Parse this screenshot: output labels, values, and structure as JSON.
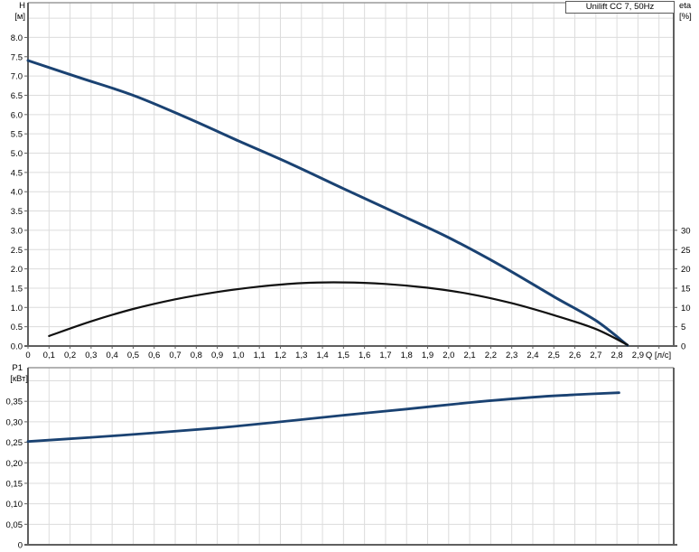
{
  "colors": {
    "curve_blue": "#1a4272",
    "curve_black": "#111111",
    "grid": "#dcdcdc",
    "axis": "#5f5f5f",
    "frame": "#9a9a9a",
    "text": "#000000"
  },
  "chart_data": [
    {
      "type": "line",
      "title": "Unilift CC 7, 50Hz",
      "x_axis": {
        "label": "Q [л/с]",
        "min": 0,
        "max": 3.07,
        "tick_step": 0.1,
        "ticks": [
          {
            "v": 0,
            "t": "0"
          },
          {
            "v": 0.1,
            "t": "0,1"
          },
          {
            "v": 0.2,
            "t": "0,2"
          },
          {
            "v": 0.3,
            "t": "0,3"
          },
          {
            "v": 0.4,
            "t": "0,4"
          },
          {
            "v": 0.5,
            "t": "0,5"
          },
          {
            "v": 0.6,
            "t": "0,6"
          },
          {
            "v": 0.7,
            "t": "0,7"
          },
          {
            "v": 0.8,
            "t": "0,8"
          },
          {
            "v": 0.9,
            "t": "0,9"
          },
          {
            "v": 1.0,
            "t": "1,0"
          },
          {
            "v": 1.1,
            "t": "1,1"
          },
          {
            "v": 1.2,
            "t": "1,2"
          },
          {
            "v": 1.3,
            "t": "1,3"
          },
          {
            "v": 1.4,
            "t": "1,4"
          },
          {
            "v": 1.5,
            "t": "1,5"
          },
          {
            "v": 1.6,
            "t": "1,6"
          },
          {
            "v": 1.7,
            "t": "1,7"
          },
          {
            "v": 1.8,
            "t": "1,8"
          },
          {
            "v": 1.9,
            "t": "1,9"
          },
          {
            "v": 2.0,
            "t": "2,0"
          },
          {
            "v": 2.1,
            "t": "2,1"
          },
          {
            "v": 2.2,
            "t": "2,2"
          },
          {
            "v": 2.3,
            "t": "2,3"
          },
          {
            "v": 2.4,
            "t": "2,4"
          },
          {
            "v": 2.5,
            "t": "2,5"
          },
          {
            "v": 2.6,
            "t": "2,6"
          },
          {
            "v": 2.7,
            "t": "2,7"
          },
          {
            "v": 2.8,
            "t": "2,8"
          },
          {
            "v": 2.9,
            "t": "2,9"
          },
          {
            "v": 3.0,
            "t": ""
          }
        ]
      },
      "y_axis_left": {
        "title": [
          "H",
          "[м]"
        ],
        "min": 0,
        "max": 8.9,
        "ticks": [
          {
            "v": 8.5,
            "t": ""
          },
          {
            "v": 8.0,
            "t": "8.0"
          },
          {
            "v": 7.5,
            "t": "7.5"
          },
          {
            "v": 7.0,
            "t": "7.0"
          },
          {
            "v": 6.5,
            "t": "6.5"
          },
          {
            "v": 6.0,
            "t": "6.0"
          },
          {
            "v": 5.5,
            "t": "5.5"
          },
          {
            "v": 5.0,
            "t": "5.0"
          },
          {
            "v": 4.5,
            "t": "4.5"
          },
          {
            "v": 4.0,
            "t": "4.0"
          },
          {
            "v": 3.5,
            "t": "3.5"
          },
          {
            "v": 3.0,
            "t": "3.0"
          },
          {
            "v": 2.5,
            "t": "2.5"
          },
          {
            "v": 2.0,
            "t": "2.0"
          },
          {
            "v": 1.5,
            "t": "1.5"
          },
          {
            "v": 1.0,
            "t": "1.0"
          },
          {
            "v": 0.5,
            "t": "0.5"
          },
          {
            "v": 0,
            "t": "0.0"
          }
        ]
      },
      "y_axis_right": {
        "title": [
          "eta",
          "[%]"
        ],
        "min": 0,
        "max": 89,
        "ticks": [
          {
            "v": 30,
            "t": "30"
          },
          {
            "v": 25,
            "t": "25"
          },
          {
            "v": 20,
            "t": "20"
          },
          {
            "v": 15,
            "t": "15"
          },
          {
            "v": 10,
            "t": "10"
          },
          {
            "v": 5,
            "t": "5"
          },
          {
            "v": 0,
            "t": "0"
          }
        ]
      },
      "series": [
        {
          "name": "head-curve",
          "color_key": "curve_blue",
          "width": 3,
          "axis": "left",
          "points": [
            [
              0,
              7.4
            ],
            [
              0.25,
              6.95
            ],
            [
              0.5,
              6.5
            ],
            [
              0.75,
              5.93
            ],
            [
              1.0,
              5.32
            ],
            [
              1.25,
              4.72
            ],
            [
              1.5,
              4.08
            ],
            [
              1.75,
              3.45
            ],
            [
              2.0,
              2.81
            ],
            [
              2.25,
              2.08
            ],
            [
              2.5,
              1.28
            ],
            [
              2.7,
              0.66
            ],
            [
              2.85,
              0.02
            ]
          ]
        },
        {
          "name": "efficiency-curve",
          "color_key": "curve_black",
          "width": 2.2,
          "axis": "right",
          "points": [
            [
              0.1,
              2.6
            ],
            [
              0.3,
              6.4
            ],
            [
              0.5,
              9.6
            ],
            [
              0.7,
              12.1
            ],
            [
              0.9,
              14.0
            ],
            [
              1.1,
              15.4
            ],
            [
              1.3,
              16.3
            ],
            [
              1.5,
              16.5
            ],
            [
              1.7,
              16.1
            ],
            [
              1.9,
              15.1
            ],
            [
              2.1,
              13.5
            ],
            [
              2.3,
              11.1
            ],
            [
              2.5,
              8.0
            ],
            [
              2.7,
              4.4
            ],
            [
              2.85,
              0.3
            ]
          ]
        }
      ]
    },
    {
      "type": "line",
      "title": "",
      "x_axis": {
        "label": "",
        "shares_ticks_with_chart": 0,
        "labels_visible": false
      },
      "y_axis_left": {
        "title": [
          "P1",
          "[кВт]"
        ],
        "min": 0,
        "max": 0.432,
        "ticks": [
          {
            "v": 0.4,
            "t": ""
          },
          {
            "v": 0.35,
            "t": "0,35"
          },
          {
            "v": 0.3,
            "t": "0,30"
          },
          {
            "v": 0.25,
            "t": "0,25"
          },
          {
            "v": 0.2,
            "t": "0,20"
          },
          {
            "v": 0.15,
            "t": "0,15"
          },
          {
            "v": 0.1,
            "t": "0,10"
          },
          {
            "v": 0.05,
            "t": "0,05"
          },
          {
            "v": 0,
            "t": "0"
          }
        ]
      },
      "series": [
        {
          "name": "power-curve",
          "color_key": "curve_blue",
          "width": 2.8,
          "axis": "left",
          "points": [
            [
              0,
              0.252
            ],
            [
              0.3,
              0.262
            ],
            [
              0.6,
              0.273
            ],
            [
              0.9,
              0.285
            ],
            [
              1.2,
              0.3
            ],
            [
              1.5,
              0.316
            ],
            [
              1.8,
              0.331
            ],
            [
              2.1,
              0.347
            ],
            [
              2.4,
              0.36
            ],
            [
              2.6,
              0.366
            ],
            [
              2.81,
              0.371
            ]
          ]
        }
      ]
    }
  ]
}
